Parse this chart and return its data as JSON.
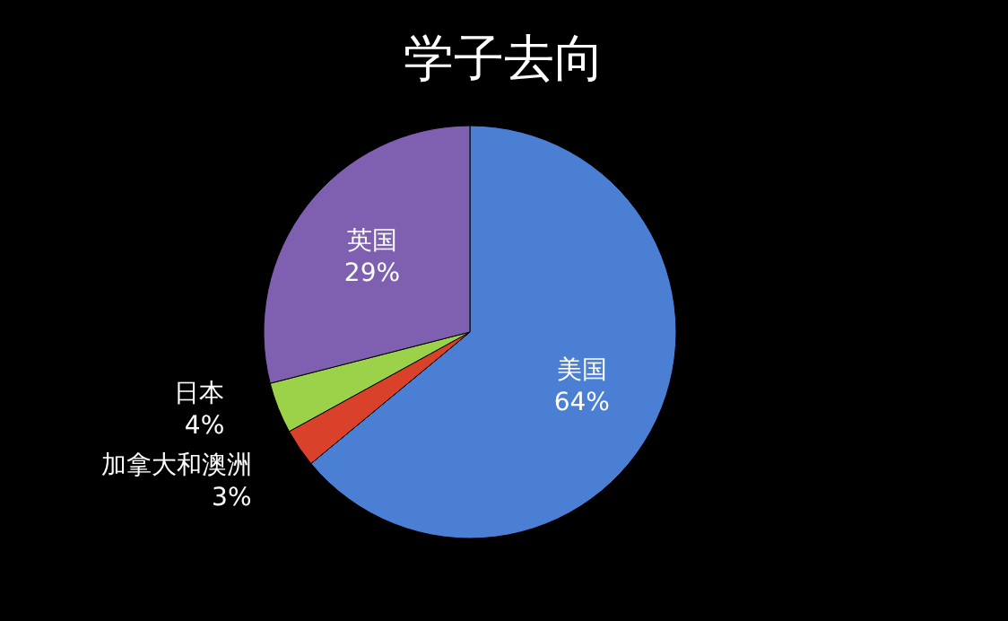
{
  "chart_data": {
    "type": "pie",
    "title": "学子去向",
    "categories": [
      "美国",
      "加拿大和澳洲",
      "日本",
      "英国"
    ],
    "values": [
      64,
      3,
      4,
      29
    ],
    "colors": [
      "#4a7fd4",
      "#d9412b",
      "#9bd24a",
      "#7e5fb0"
    ],
    "value_labels": [
      "64%",
      "3%",
      "4%",
      "29%"
    ]
  }
}
